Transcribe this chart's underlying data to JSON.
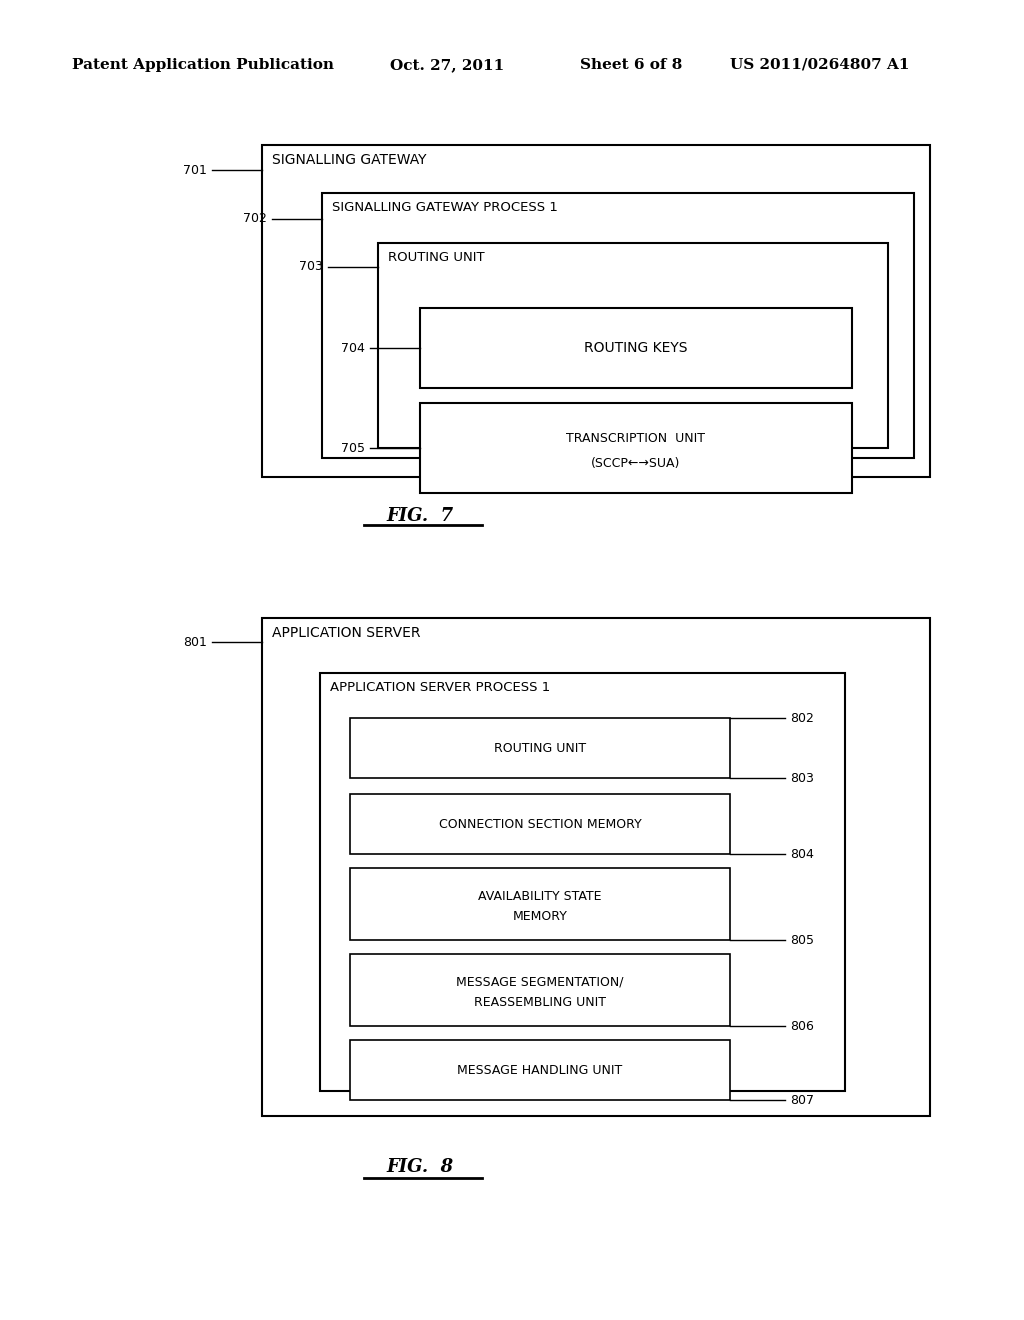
{
  "bg_color": "#ffffff",
  "header_text": "Patent Application Publication",
  "header_date": "Oct. 27, 2011",
  "header_sheet": "Sheet 6 of 8",
  "header_patent": "US 2011/0264807 A1",
  "fig7_caption": "FIG.  7",
  "fig8_caption": "FIG.  8",
  "fig7": {
    "outer_label": "701",
    "outer_title": "SIGNALLING GATEWAY",
    "mid_label": "702",
    "mid_title": "SIGNALLING GATEWAY PROCESS 1",
    "inner_label": "703",
    "inner_title": "ROUTING UNIT",
    "rk_label": "704",
    "rk_title": "ROUTING KEYS",
    "tr_label": "705",
    "tr_title1": "TRANSCRIPTION  UNIT",
    "tr_title2": "(SCCP←→SUA)"
  },
  "fig8": {
    "outer_label": "801",
    "outer_title": "APPLICATION SERVER",
    "mid_title": "APPLICATION SERVER PROCESS 1",
    "boxes": [
      {
        "label": "802",
        "title": "ROUTING UNIT",
        "two_line": false
      },
      {
        "label": "803",
        "title": "CONNECTION SECTION MEMORY",
        "two_line": false
      },
      {
        "label": "804",
        "title": "AVAILABILITY STATE\nMEMORY",
        "two_line": true
      },
      {
        "label": "805",
        "title": "MESSAGE SEGMENTATION/\nREASSEMBLING UNIT",
        "two_line": true
      },
      {
        "label": "806",
        "title": "MESSAGE HANDLING UNIT",
        "two_line": false
      },
      {
        "label": "807",
        "title": "",
        "two_line": false
      }
    ]
  }
}
